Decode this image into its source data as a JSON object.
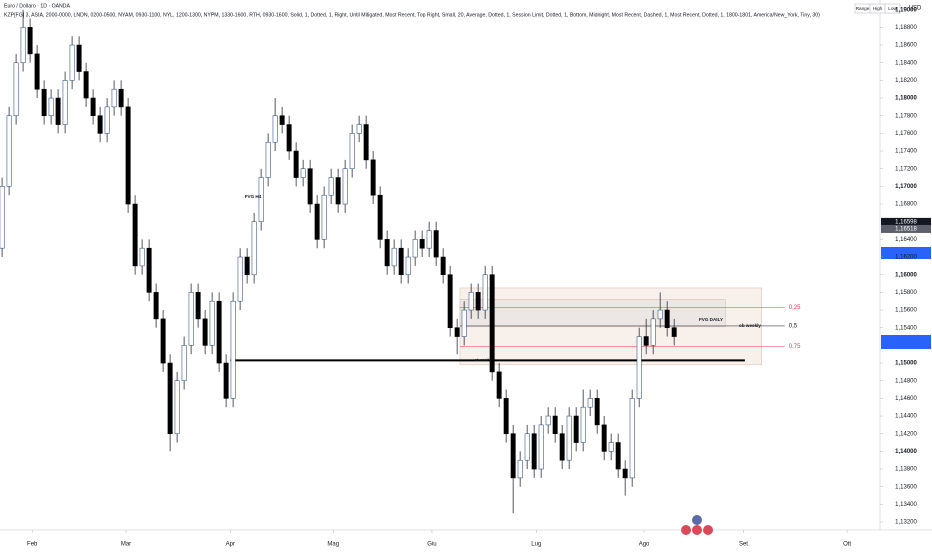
{
  "chart_data": {
    "type": "candlestick",
    "title": "Euro / Dollaro · 1D · OANDA",
    "subtitle": "KZP[FG] 3, ASIA, 2000-0000, LNDN, 0200-0500, NYAM, 0930-1100, NYL, 1200-1300, NYPM, 1330-1600, RTH, 0930-1600, Solid, 1, Dotted, 1, Right, Until Mitigated, Most Recent, Top Right, Small, 20, Average, Dotted, 1, Session Limit, Dotted, 1, Bottom, Midnight, Most Recent, Dashed, 1, Most Recent, Dotted, 1, 1800-1801, America/New_York, Tiny, 30)",
    "buttons": [
      "Range",
      "High",
      "Low"
    ],
    "currency": "USD",
    "open": [
      1.163,
      1.17,
      1.178,
      1.184,
      1.188,
      1.185,
      1.181,
      1.178,
      1.18,
      1.177,
      1.182,
      1.186,
      1.183,
      1.18,
      1.178,
      1.176,
      1.179,
      1.181,
      1.179,
      1.168,
      1.161,
      1.163,
      1.158,
      1.155,
      1.15,
      1.142,
      1.148,
      1.152,
      1.158,
      1.155,
      1.152,
      1.157,
      1.15,
      1.146,
      1.157,
      1.162,
      1.16,
      1.166,
      1.171,
      1.175,
      1.178,
      1.177,
      1.174,
      1.171,
      1.172,
      1.168,
      1.164,
      1.169,
      1.171,
      1.168,
      1.172,
      1.176,
      1.177,
      1.173,
      1.169,
      1.164,
      1.161,
      1.163,
      1.16,
      1.162,
      1.164,
      1.163,
      1.165,
      1.162,
      1.16,
      1.154,
      1.153,
      1.156,
      1.158,
      1.156,
      1.16,
      1.149,
      1.146,
      1.142,
      1.137,
      1.139,
      1.142,
      1.138,
      1.143,
      1.144,
      1.142,
      1.139,
      1.144,
      1.141,
      1.145,
      1.146,
      1.143,
      1.14,
      1.141,
      1.138,
      1.137,
      1.146,
      1.153,
      1.152,
      1.155,
      1.156,
      1.154
    ],
    "high": [
      1.171,
      1.179,
      1.185,
      1.19,
      1.189,
      1.186,
      1.182,
      1.181,
      1.181,
      1.183,
      1.187,
      1.187,
      1.184,
      1.181,
      1.179,
      1.18,
      1.182,
      1.182,
      1.18,
      1.169,
      1.164,
      1.164,
      1.159,
      1.156,
      1.151,
      1.149,
      1.153,
      1.159,
      1.159,
      1.156,
      1.158,
      1.158,
      1.151,
      1.158,
      1.163,
      1.163,
      1.167,
      1.172,
      1.176,
      1.18,
      1.179,
      1.178,
      1.175,
      1.173,
      1.173,
      1.169,
      1.17,
      1.172,
      1.172,
      1.173,
      1.177,
      1.178,
      1.178,
      1.174,
      1.17,
      1.165,
      1.164,
      1.164,
      1.163,
      1.165,
      1.165,
      1.166,
      1.166,
      1.163,
      1.161,
      1.155,
      1.157,
      1.159,
      1.159,
      1.161,
      1.161,
      1.15,
      1.147,
      1.143,
      1.14,
      1.143,
      1.143,
      1.144,
      1.145,
      1.145,
      1.143,
      1.145,
      1.145,
      1.147,
      1.147,
      1.147,
      1.144,
      1.142,
      1.142,
      1.139,
      1.147,
      1.154,
      1.155,
      1.156,
      1.158,
      1.157,
      1.155
    ],
    "low": [
      1.162,
      1.169,
      1.177,
      1.183,
      1.184,
      1.18,
      1.177,
      1.177,
      1.176,
      1.176,
      1.181,
      1.182,
      1.179,
      1.177,
      1.175,
      1.175,
      1.178,
      1.178,
      1.167,
      1.16,
      1.16,
      1.157,
      1.154,
      1.149,
      1.14,
      1.141,
      1.147,
      1.151,
      1.154,
      1.151,
      1.151,
      1.149,
      1.145,
      1.145,
      1.156,
      1.159,
      1.159,
      1.165,
      1.17,
      1.174,
      1.176,
      1.173,
      1.17,
      1.17,
      1.167,
      1.163,
      1.163,
      1.168,
      1.167,
      1.167,
      1.171,
      1.175,
      1.172,
      1.168,
      1.163,
      1.16,
      1.16,
      1.159,
      1.159,
      1.161,
      1.162,
      1.162,
      1.161,
      1.159,
      1.153,
      1.151,
      1.152,
      1.155,
      1.155,
      1.155,
      1.148,
      1.145,
      1.141,
      1.133,
      1.136,
      1.138,
      1.137,
      1.137,
      1.142,
      1.141,
      1.138,
      1.138,
      1.14,
      1.14,
      1.144,
      1.142,
      1.139,
      1.139,
      1.137,
      1.135,
      1.136,
      1.145,
      1.151,
      1.151,
      1.154,
      1.153,
      1.152
    ],
    "close": [
      1.17,
      1.178,
      1.184,
      1.188,
      1.185,
      1.181,
      1.178,
      1.18,
      1.177,
      1.182,
      1.186,
      1.183,
      1.18,
      1.178,
      1.176,
      1.179,
      1.181,
      1.179,
      1.168,
      1.161,
      1.163,
      1.158,
      1.155,
      1.15,
      1.142,
      1.148,
      1.152,
      1.158,
      1.155,
      1.152,
      1.157,
      1.15,
      1.146,
      1.157,
      1.162,
      1.16,
      1.166,
      1.171,
      1.175,
      1.178,
      1.177,
      1.174,
      1.171,
      1.172,
      1.168,
      1.164,
      1.169,
      1.171,
      1.168,
      1.172,
      1.176,
      1.177,
      1.173,
      1.169,
      1.164,
      1.161,
      1.163,
      1.16,
      1.162,
      1.164,
      1.163,
      1.165,
      1.162,
      1.16,
      1.154,
      1.153,
      1.156,
      1.158,
      1.156,
      1.16,
      1.149,
      1.146,
      1.142,
      1.137,
      1.139,
      1.142,
      1.138,
      1.143,
      1.144,
      1.142,
      1.139,
      1.144,
      1.141,
      1.145,
      1.146,
      1.143,
      1.14,
      1.141,
      1.138,
      1.137,
      1.146,
      1.153,
      1.152,
      1.155,
      1.156,
      1.154,
      1.153
    ],
    "up_color": "#ffffff",
    "down_color": "#000000",
    "wick_color": "#2a2e39",
    "xlim": [
      -0.3,
      125.4
    ],
    "xticks": [
      {
        "value": 4.3,
        "label": "Feb"
      },
      {
        "value": 17.7,
        "label": "Mar"
      },
      {
        "value": 32.6,
        "label": "Apr"
      },
      {
        "value": 47.3,
        "label": "Mag"
      },
      {
        "value": 61.4,
        "label": "Giu"
      },
      {
        "value": 76.3,
        "label": "Lug"
      },
      {
        "value": 91.7,
        "label": "Ago"
      },
      {
        "value": 105.9,
        "label": "Set"
      },
      {
        "value": 120.7,
        "label": "Ott"
      }
    ],
    "ylim": [
      1.1311,
      1.1911
    ],
    "yticks": [
      {
        "value": 1.19,
        "label": "1,19000"
      },
      {
        "value": 1.188,
        "label": "1,18800"
      },
      {
        "value": 1.186,
        "label": "1,18600"
      },
      {
        "value": 1.184,
        "label": "1,18400"
      },
      {
        "value": 1.182,
        "label": "1,18200"
      },
      {
        "value": 1.18,
        "label": "1,18000"
      },
      {
        "value": 1.178,
        "label": "1,17800"
      },
      {
        "value": 1.176,
        "label": "1,17600"
      },
      {
        "value": 1.174,
        "label": "1,17400"
      },
      {
        "value": 1.172,
        "label": "1,17200"
      },
      {
        "value": 1.17,
        "label": "1,17000"
      },
      {
        "value": 1.168,
        "label": "1,16800"
      },
      {
        "value": 1.164,
        "label": "1,16400"
      },
      {
        "value": 1.162,
        "label": "1,16200"
      },
      {
        "value": 1.16,
        "label": "1,16000"
      },
      {
        "value": 1.158,
        "label": "1,15800"
      },
      {
        "value": 1.156,
        "label": "1,15600"
      },
      {
        "value": 1.154,
        "label": "1,15400"
      },
      {
        "value": 1.15,
        "label": "1,15000"
      },
      {
        "value": 1.148,
        "label": "1,14800"
      },
      {
        "value": 1.146,
        "label": "1,14600"
      },
      {
        "value": 1.144,
        "label": "1,14400"
      },
      {
        "value": 1.142,
        "label": "1,14200"
      },
      {
        "value": 1.14,
        "label": "1,14000"
      },
      {
        "value": 1.138,
        "label": "1,13800"
      },
      {
        "value": 1.136,
        "label": "1,13600"
      },
      {
        "value": 1.134,
        "label": "1,13400"
      },
      {
        "value": 1.132,
        "label": "1,13200"
      }
    ],
    "grid": false,
    "price_labels": [
      {
        "value": 1.16598,
        "label": "1,16598"
      },
      {
        "value": 1.16518,
        "label": "1,16518"
      }
    ],
    "zones": [
      {
        "x": [
          65.4,
          108.5
        ],
        "y": [
          1.1498,
          1.1585
        ],
        "color": "#f6ebe4"
      },
      {
        "x": [
          65.4,
          103.3
        ],
        "y": [
          1.1541,
          1.1572
        ],
        "color": "#e8e4e2"
      }
    ],
    "levels": [
      {
        "label": "0,25",
        "value": 1.1563,
        "x": [
          65.4,
          111.8
        ],
        "color": "#f23645"
      },
      {
        "label": "0,5",
        "value": 1.1542,
        "x": [
          65.4,
          111.8
        ],
        "color": "#131722"
      },
      {
        "label": "0,75",
        "value": 1.1519,
        "x": [
          65.4,
          111.8
        ],
        "color": "#f23645"
      }
    ],
    "ob_line": {
      "value": 1.1503,
      "x": [
        32.6,
        106.1
      ],
      "color": "#000000"
    },
    "annotations": [
      "FVG H4",
      "FVG DAILY",
      "ob weekly",
      "ob weekly"
    ]
  }
}
